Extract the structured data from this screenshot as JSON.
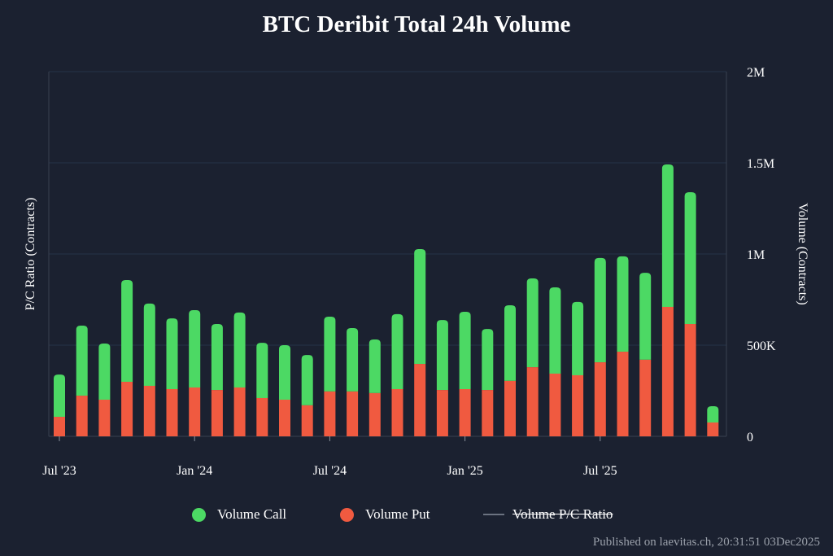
{
  "chart_data": {
    "type": "bar",
    "stacked": true,
    "title": "BTC Deribit Total 24h Volume",
    "ylabel_left": "P/C Ratio (Contracts)",
    "ylabel_right": "Volume (Contracts)",
    "ylim": [
      0,
      2000000
    ],
    "y_ticks": [
      {
        "value": 0,
        "label": "0"
      },
      {
        "value": 500000,
        "label": "500K"
      },
      {
        "value": 1000000,
        "label": "1M"
      },
      {
        "value": 1500000,
        "label": "1.5M"
      },
      {
        "value": 2000000,
        "label": "2M"
      }
    ],
    "x_ticks": [
      {
        "index": 0,
        "label": "Jul '23"
      },
      {
        "index": 6,
        "label": "Jan '24"
      },
      {
        "index": 12,
        "label": "Jul '24"
      },
      {
        "index": 18,
        "label": "Jan '25"
      },
      {
        "index": 24,
        "label": "Jul '25"
      }
    ],
    "categories": [
      "2023-07",
      "2023-08",
      "2023-09",
      "2023-10",
      "2023-11",
      "2023-12",
      "2024-01",
      "2024-02",
      "2024-03",
      "2024-04",
      "2024-05",
      "2024-06",
      "2024-07",
      "2024-08",
      "2024-09",
      "2024-10",
      "2024-11",
      "2024-12",
      "2025-01",
      "2025-02",
      "2025-03",
      "2025-04",
      "2025-05",
      "2025-06",
      "2025-07",
      "2025-08",
      "2025-09",
      "2025-10",
      "2025-11",
      "2025-12"
    ],
    "series": [
      {
        "name": "Volume Put",
        "color": "#f05a40",
        "values": [
          107000,
          223000,
          201000,
          299000,
          277000,
          259000,
          268000,
          254000,
          268000,
          210000,
          201000,
          170000,
          246000,
          246000,
          237000,
          259000,
          397000,
          254000,
          259000,
          254000,
          304000,
          379000,
          344000,
          335000,
          406000,
          464000,
          420000,
          710000,
          616000,
          76000
        ]
      },
      {
        "name": "Volume Call",
        "color": "#4cd964",
        "values": [
          232000,
          384000,
          308000,
          558000,
          451000,
          388000,
          424000,
          362000,
          411000,
          303000,
          299000,
          276000,
          410000,
          348000,
          294000,
          411000,
          630000,
          384000,
          424000,
          335000,
          415000,
          487000,
          473000,
          402000,
          572000,
          523000,
          477000,
          781000,
          723000,
          89000
        ]
      }
    ],
    "legend": [
      {
        "label": "Volume Call",
        "color": "#4cd964",
        "hidden": false
      },
      {
        "label": "Volume Put",
        "color": "#f05a40",
        "hidden": false
      },
      {
        "label": "Volume P/C Ratio",
        "color": "#6b7280",
        "hidden": true
      }
    ],
    "legend_position": "bottom-center"
  },
  "footer": "Published on laevitas.ch, 20:31:51 03Dec2025"
}
